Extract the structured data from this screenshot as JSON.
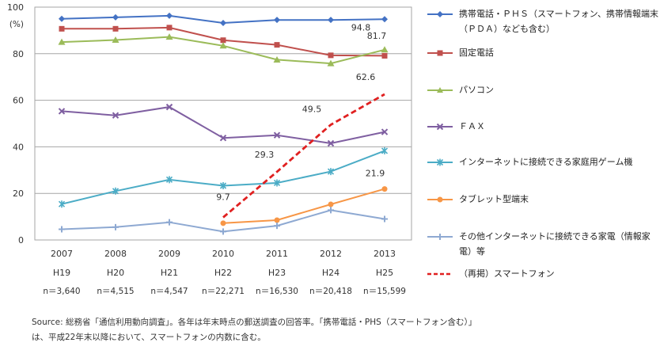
{
  "chart_data": {
    "type": "line",
    "ylabel": "(%)",
    "ylim": [
      0,
      100
    ],
    "yticks": [
      0,
      20,
      40,
      60,
      80,
      100
    ],
    "categories": [
      "2007",
      "2008",
      "2009",
      "2010",
      "2011",
      "2012",
      "2013"
    ],
    "era_labels": [
      "H19",
      "H20",
      "H21",
      "H22",
      "H23",
      "H24",
      "H25"
    ],
    "sample_sizes": [
      "n＝3,640",
      "n＝4,515",
      "n＝4,547",
      "n＝22,271",
      "n＝16,530",
      "n＝20,418",
      "n＝15,599"
    ],
    "grid": true,
    "legend_position": "right",
    "series": [
      {
        "name": "携帯電話・PHS（スマートフォン、携帯情報端末（PDA）なども含む）",
        "color": "#4472C4",
        "marker": "diamond",
        "dashed": false,
        "values": [
          95.0,
          95.6,
          96.3,
          93.2,
          94.5,
          94.5,
          94.8
        ]
      },
      {
        "name": "固定電話",
        "color": "#C0504D",
        "marker": "square",
        "dashed": false,
        "values": [
          90.7,
          90.7,
          91.2,
          85.8,
          83.8,
          79.3,
          79.1
        ]
      },
      {
        "name": "パソコン",
        "color": "#9BBB59",
        "marker": "triangle",
        "dashed": false,
        "values": [
          85.0,
          85.9,
          87.2,
          83.4,
          77.4,
          75.8,
          81.7
        ]
      },
      {
        "name": "ＦＡＸ",
        "color": "#7F5FA1",
        "marker": "x",
        "dashed": false,
        "values": [
          55.3,
          53.5,
          57.1,
          43.8,
          45.0,
          41.5,
          46.4
        ]
      },
      {
        "name": "インターネットに接続できる家庭用ゲーム機",
        "color": "#4BACC6",
        "marker": "asterisk",
        "dashed": false,
        "values": [
          15.4,
          21.0,
          25.9,
          23.3,
          24.5,
          29.4,
          38.3
        ]
      },
      {
        "name": "タブレット型端末",
        "color": "#F79646",
        "marker": "circle",
        "dashed": false,
        "values": [
          null,
          null,
          null,
          7.2,
          8.5,
          15.3,
          21.9
        ]
      },
      {
        "name": "その他インターネットに接続できる家電（情報家電）等",
        "color": "#8EA9D2",
        "marker": "plus",
        "dashed": false,
        "values": [
          4.6,
          5.5,
          7.6,
          3.6,
          6.1,
          12.8,
          9.0
        ]
      },
      {
        "name": "（再掲）スマートフォン",
        "color": "#E02020",
        "marker": "none",
        "dashed": true,
        "values": [
          null,
          null,
          null,
          9.7,
          29.3,
          49.5,
          62.6
        ]
      }
    ],
    "data_labels": [
      {
        "series": 7,
        "index": 3,
        "text": "9.7"
      },
      {
        "series": 7,
        "index": 4,
        "text": "29.3"
      },
      {
        "series": 7,
        "index": 5,
        "text": "49.5"
      },
      {
        "series": 7,
        "index": 6,
        "text": "62.6"
      },
      {
        "series": 0,
        "index": 6,
        "text": "94.8"
      },
      {
        "series": 2,
        "index": 6,
        "text": "81.7"
      },
      {
        "series": 5,
        "index": 6,
        "text": "21.9"
      }
    ]
  },
  "legend_items": [
    "携帯電話・ＰＨＳ（スマートフォン、携帯情報端末（ＰＤＡ）なども含む）",
    "固定電話",
    "パソコン",
    "ＦＡＸ",
    "インターネットに接続できる家庭用ゲーム機",
    "タブレット型端末",
    "その他インターネットに接続できる家電（情報家電）等",
    "（再掲）スマートフォン"
  ],
  "source_note": "Source: 総務省「通信利用動向調査」。各年は年末時点の郵送調査の回答率。「携帯電話・PHS（スマートフォン含む）」は、平成22年末以降において、スマートフォンの内数に含む。"
}
